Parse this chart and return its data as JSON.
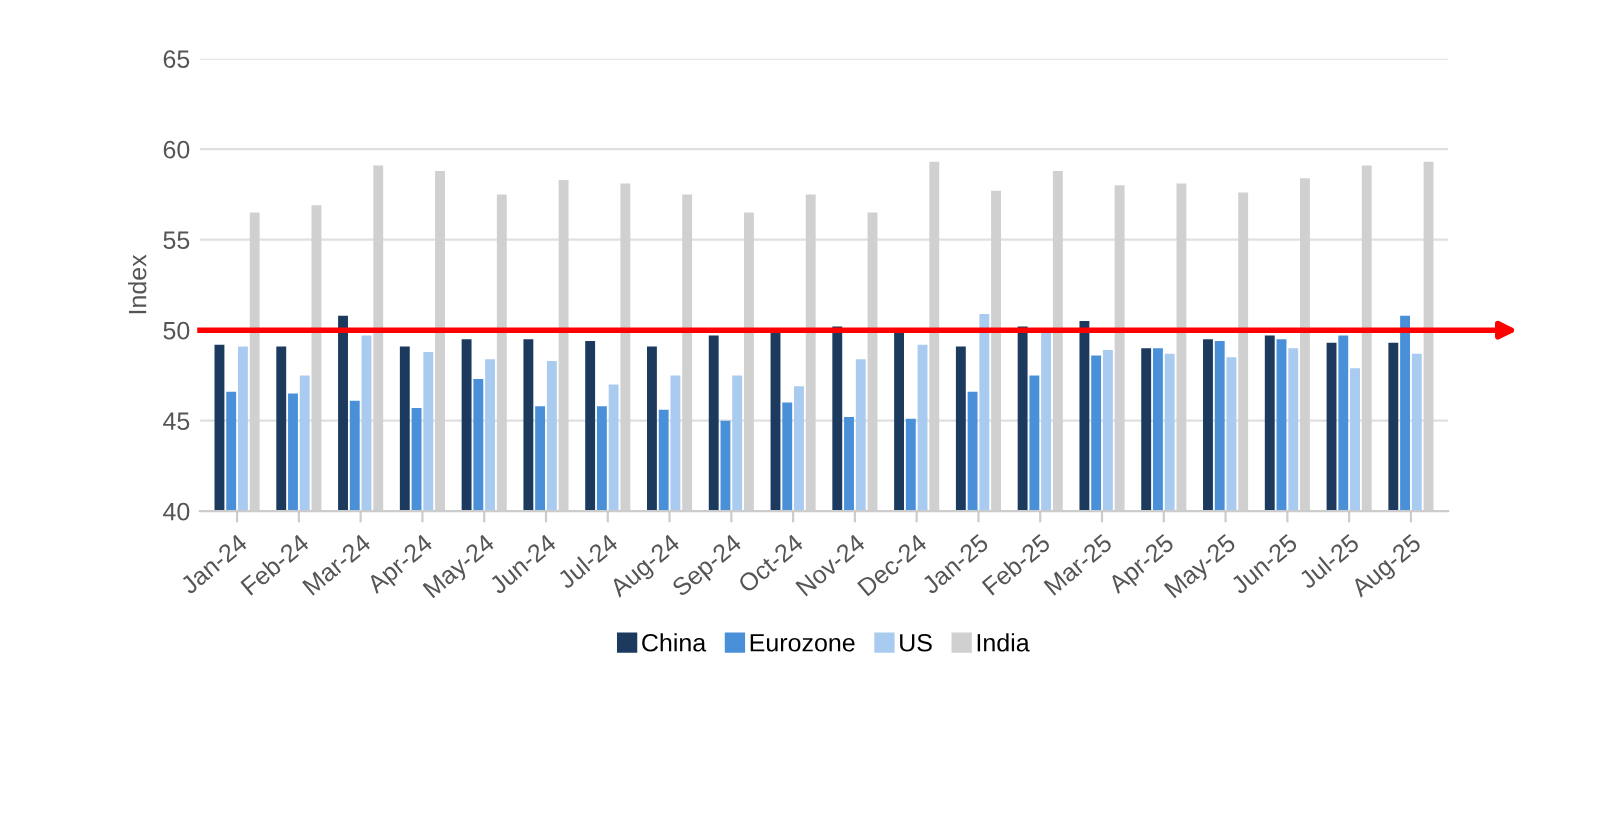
{
  "chart_data": {
    "type": "bar",
    "ylabel": "Index",
    "categories": [
      "Jan-24",
      "Feb-24",
      "Mar-24",
      "Apr-24",
      "May-24",
      "Jun-24",
      "Jul-24",
      "Aug-24",
      "Sep-24",
      "Oct-24",
      "Nov-24",
      "Dec-24",
      "Jan-25",
      "Feb-25",
      "Mar-25",
      "Apr-25",
      "May-25",
      "Jun-25",
      "Jul-25",
      "Aug-25"
    ],
    "series": [
      {
        "name": "China",
        "color": "#1b3a5e",
        "values": [
          49.2,
          49.1,
          50.8,
          49.1,
          49.5,
          49.5,
          49.4,
          49.1,
          49.7,
          50.0,
          50.2,
          50.0,
          49.1,
          50.2,
          50.5,
          49.0,
          49.5,
          49.7,
          49.3,
          49.3
        ]
      },
      {
        "name": "Eurozone",
        "color": "#4a90d9",
        "values": [
          46.6,
          46.5,
          46.1,
          45.7,
          47.3,
          45.8,
          45.8,
          45.6,
          45.0,
          46.0,
          45.2,
          45.1,
          46.6,
          47.5,
          48.6,
          49.0,
          49.4,
          49.5,
          49.7,
          50.8
        ]
      },
      {
        "name": "US",
        "color": "#a9cbef",
        "values": [
          49.1,
          47.5,
          49.7,
          48.8,
          48.4,
          48.3,
          47.0,
          47.5,
          47.5,
          46.9,
          48.4,
          49.2,
          50.9,
          50.0,
          48.9,
          48.7,
          48.5,
          49.0,
          47.9,
          48.7
        ]
      },
      {
        "name": "India",
        "color": "#d0d0d0",
        "values": [
          56.5,
          56.9,
          59.1,
          58.8,
          57.5,
          58.3,
          58.1,
          57.5,
          56.5,
          57.5,
          56.5,
          59.3,
          57.7,
          58.8,
          58.0,
          58.1,
          57.6,
          58.4,
          59.1,
          59.3
        ]
      }
    ],
    "ylim": [
      40,
      65
    ],
    "yticks": [
      40,
      45,
      50,
      55,
      60,
      65
    ],
    "grid": "y",
    "legend": "bottom",
    "ref_lines": [
      {
        "axis": "y",
        "value": 50,
        "color": "#ff0000"
      }
    ]
  }
}
